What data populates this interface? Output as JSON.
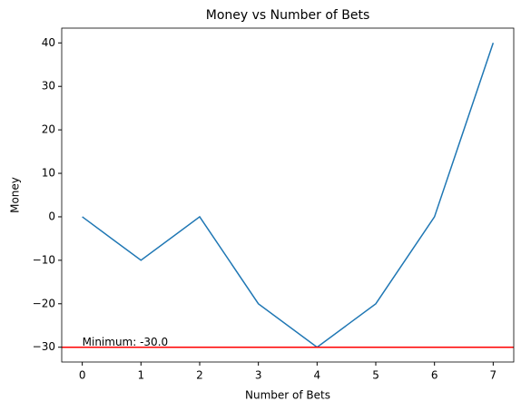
{
  "chart_data": {
    "type": "line",
    "title": "Money vs Number of Bets",
    "x_label": "Number of Bets",
    "y_label": "Money",
    "x": [
      0,
      1,
      2,
      3,
      4,
      5,
      6,
      7
    ],
    "series": [
      {
        "name": "Money",
        "color": "#1f77b4",
        "values": [
          0,
          -10,
          0,
          -20,
          -30,
          -20,
          0,
          40
        ]
      }
    ],
    "xlim": [
      -0.35,
      7.35
    ],
    "ylim": [
      -33.4,
      43.4
    ],
    "xticks": [
      0,
      1,
      2,
      3,
      4,
      5,
      6,
      7
    ],
    "yticks": [
      {
        "value": -30,
        "label": "−30"
      },
      {
        "value": -20,
        "label": "−20"
      },
      {
        "value": -10,
        "label": "−10"
      },
      0,
      10,
      20,
      30,
      40
    ],
    "hline": {
      "value": -30,
      "color": "#ff0000",
      "label": "Minimum: -30.0"
    },
    "grid": false
  }
}
